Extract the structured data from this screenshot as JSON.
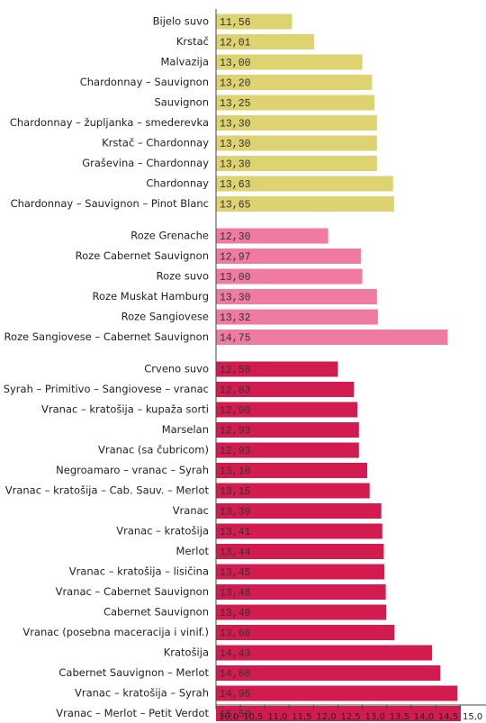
{
  "chart_data": {
    "type": "bar",
    "orientation": "horizontal",
    "groups": [
      {
        "color": "#ddd471",
        "categories": [
          "Bijelo suvo",
          "Krstač",
          "Malvazija",
          "Chardonnay – Sauvignon",
          "Sauvignon",
          "Chardonnay – župljanka – smederevka",
          "Krstač – Chardonnay",
          "Graševina – Chardonnay",
          "Chardonnay",
          "Chardonnay – Sauvignon – Pinot Blanc"
        ],
        "values": [
          11.56,
          12.01,
          13.0,
          13.2,
          13.25,
          13.3,
          13.3,
          13.3,
          13.63,
          13.65
        ],
        "value_labels": [
          "11,56",
          "12,01",
          "13,00",
          "13,20",
          "13,25",
          "13,30",
          "13,30",
          "13,30",
          "13,63",
          "13,65"
        ]
      },
      {
        "color": "#f07ba1",
        "categories": [
          "Roze Grenache",
          "Roze Cabernet Sauvignon",
          "Roze suvo",
          "Roze Muskat Hamburg",
          "Roze Sangiovese",
          "Roze Sangiovese – Cabernet Sauvignon"
        ],
        "values": [
          12.3,
          12.97,
          13.0,
          13.3,
          13.32,
          14.75
        ],
        "value_labels": [
          "12,30",
          "12,97",
          "13,00",
          "13,30",
          "13,32",
          "14,75"
        ]
      },
      {
        "color": "#d21c50",
        "categories": [
          "Crveno suvo",
          "Syrah – Primitivo – Sangiovese – vranac",
          "Vranac – kratošija – kupaža sorti",
          "Marselan",
          "Vranac (sa čubricom)",
          "Negroamaro – vranac – Syrah",
          "Vranac – kratošija – Cab. Sauv. – Merlot",
          "Vranac",
          "Vranac – kratošija",
          "Merlot",
          "Vranac – kratošija – lisičina",
          "Vranac – Cabernet Sauvignon",
          "Cabernet Sauvignon",
          "Vranac (posebna maceracija i vinif.)",
          "Kratošija",
          "Cabernet Sauvignon – Merlot",
          "Vranac – kratošija – Syrah",
          "Vranac – Merlot – Petit Verdot"
        ],
        "values": [
          12.5,
          12.83,
          12.9,
          12.93,
          12.93,
          13.1,
          13.15,
          13.39,
          13.41,
          13.44,
          13.45,
          13.48,
          13.49,
          13.66,
          14.43,
          14.6,
          14.95,
          15.5
        ],
        "value_labels": [
          "12,50",
          "12,83",
          "12,90",
          "12,93",
          "12,93",
          "13,10",
          "13,15",
          "13,39",
          "13,41",
          "13,44",
          "13,45",
          "13,48",
          "13,49",
          "13,66",
          "14,43",
          "14,60",
          "14,95",
          "15,50"
        ]
      }
    ],
    "xlim": [
      10,
      15
    ],
    "xticks": [
      {
        "value": 10,
        "label": "10,0"
      },
      {
        "value": 10.5,
        "label": "10,5"
      },
      {
        "value": 11,
        "label": "11,0"
      },
      {
        "value": 11.5,
        "label": "11,5"
      },
      {
        "value": 12,
        "label": "12,0"
      },
      {
        "value": 12.5,
        "label": "12,5"
      },
      {
        "value": 13,
        "label": "13,0"
      },
      {
        "value": 13.5,
        "label": "13,5"
      },
      {
        "value": 14,
        "label": "14,0"
      },
      {
        "value": 14.5,
        "label": "14,5"
      },
      {
        "value": 15,
        "label": "15,0"
      }
    ]
  }
}
